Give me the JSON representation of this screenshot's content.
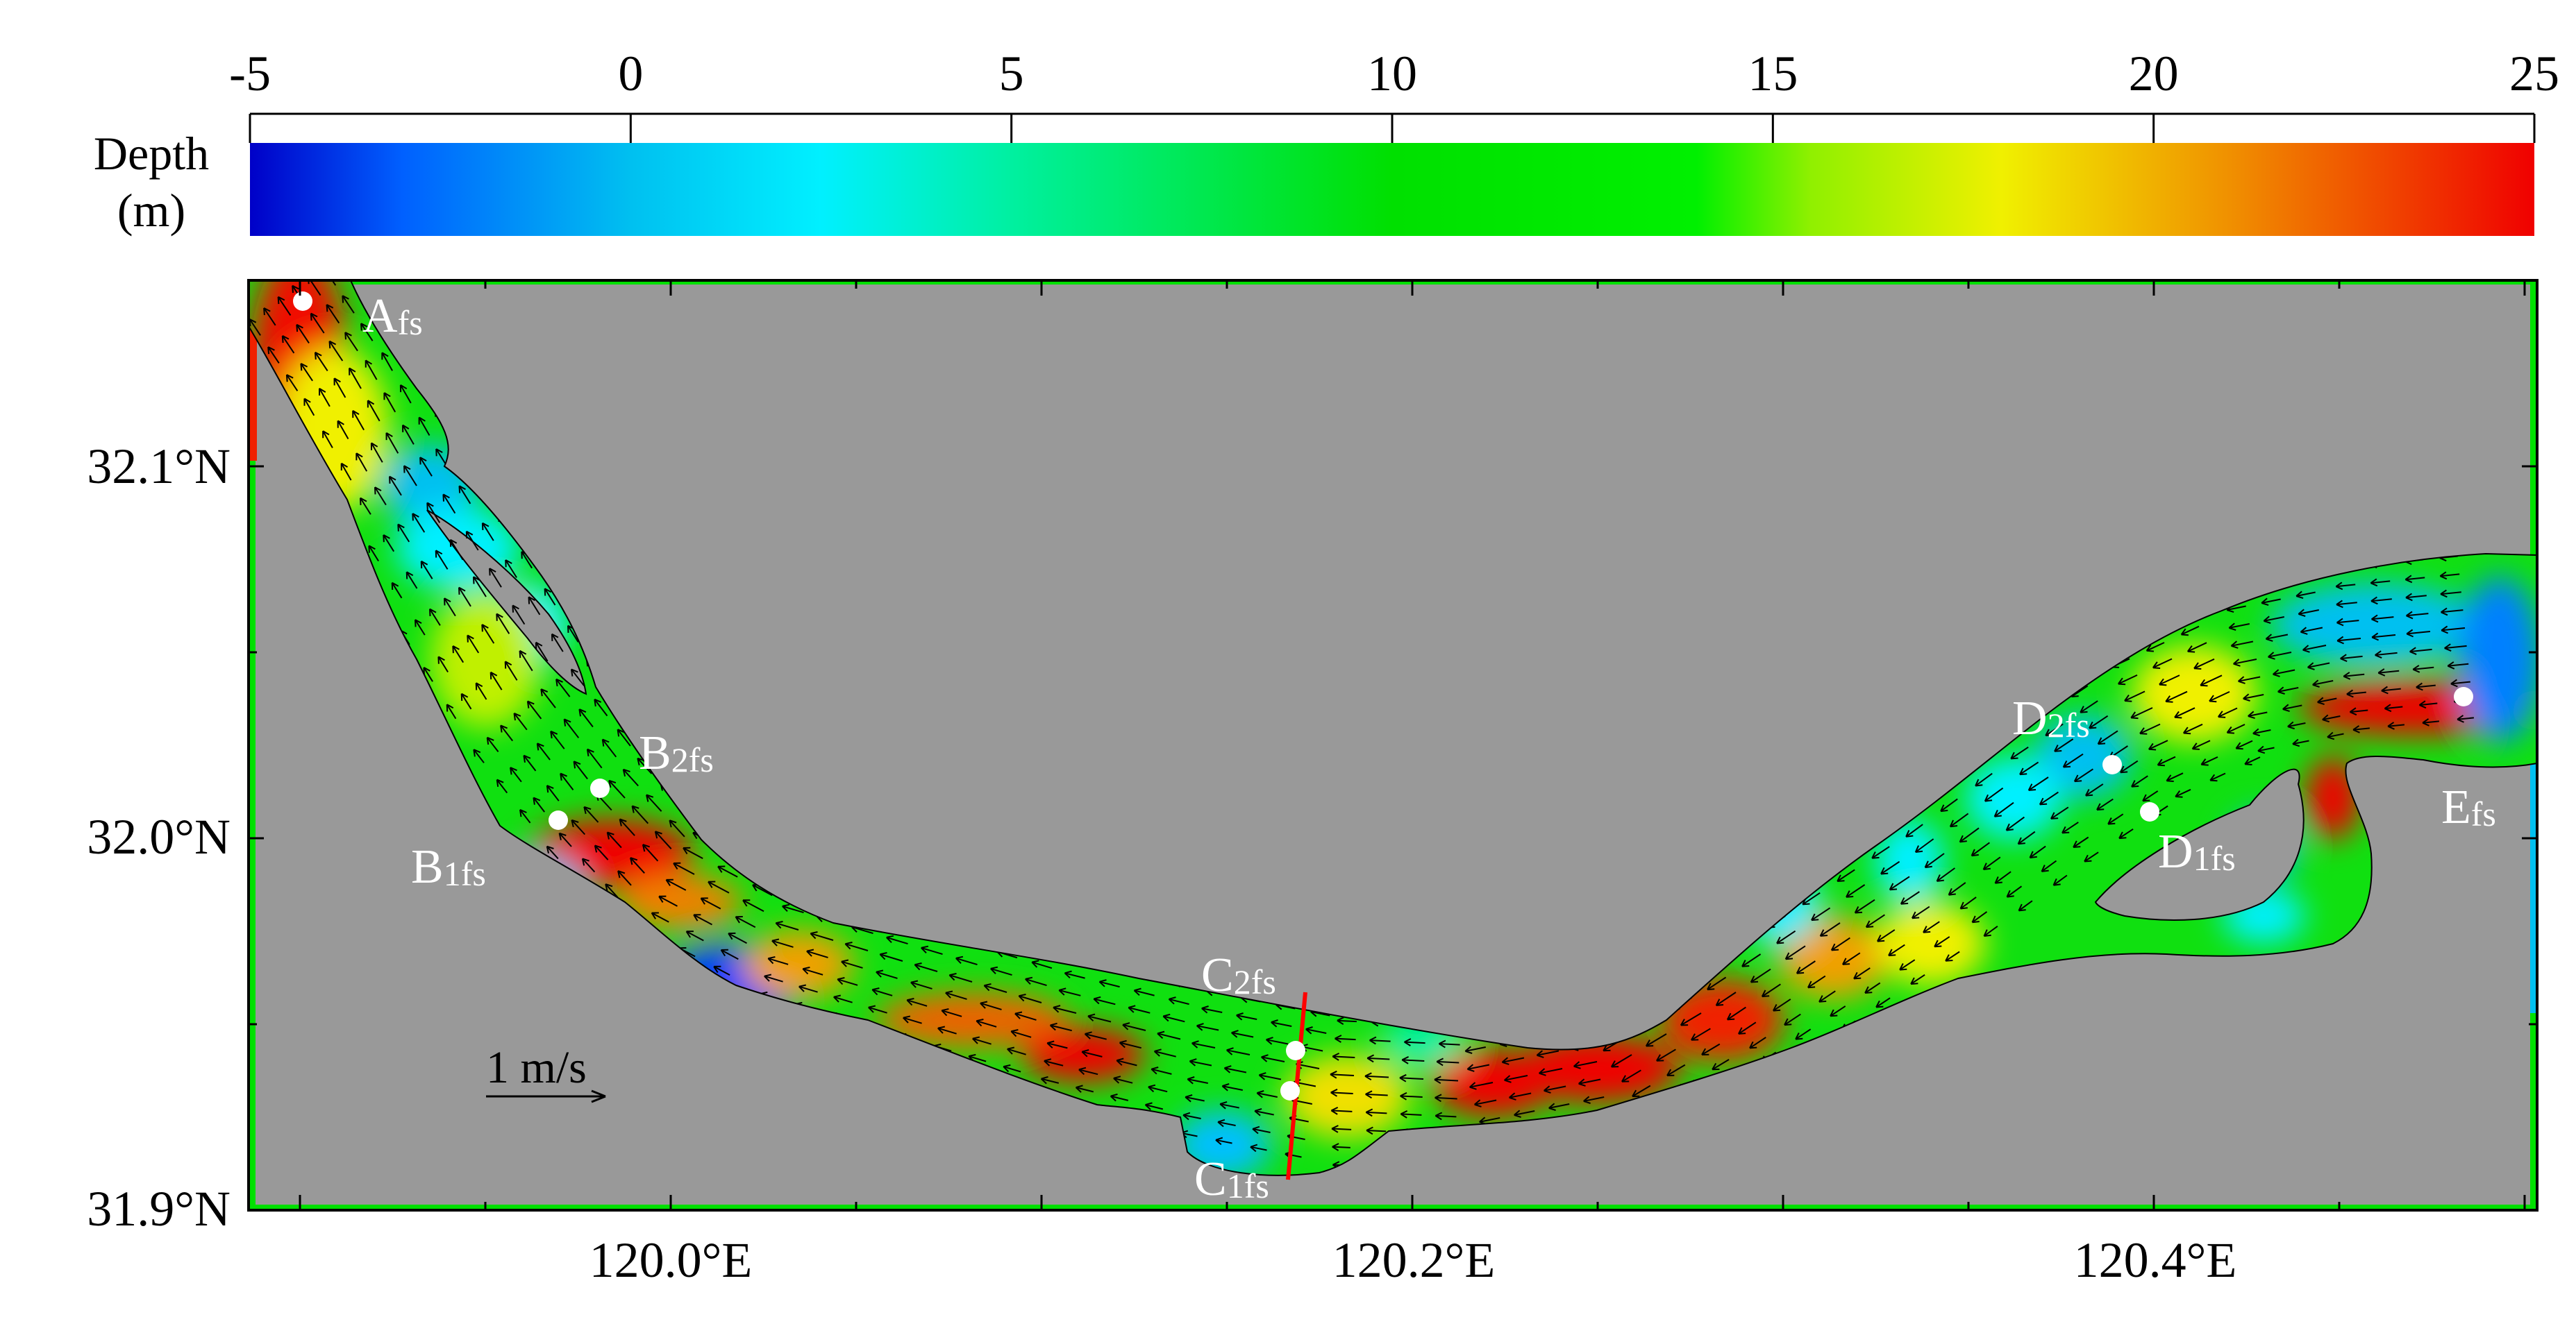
{
  "colorbar": {
    "label_line1": "Depth",
    "label_line2": "(m)",
    "ticks": [
      "-5",
      "0",
      "5",
      "10",
      "15",
      "20",
      "25"
    ],
    "stops": [
      {
        "value": -5,
        "color": "#0000c8"
      },
      {
        "value": -3,
        "color": "#0060ff"
      },
      {
        "value": 0,
        "color": "#00c0f0"
      },
      {
        "value": 2.5,
        "color": "#00f0ff"
      },
      {
        "value": 5,
        "color": "#00f0a0"
      },
      {
        "value": 10,
        "color": "#00e000"
      },
      {
        "value": 14,
        "color": "#00f000"
      },
      {
        "value": 15.5,
        "color": "#90f000"
      },
      {
        "value": 18,
        "color": "#f0f000"
      },
      {
        "value": 21,
        "color": "#f09000"
      },
      {
        "value": 25,
        "color": "#f00000"
      }
    ]
  },
  "map": {
    "lat_labels": [
      "32.1°N",
      "32.0°N",
      "31.9°N"
    ],
    "lon_labels": [
      "120.0°E",
      "120.2°E",
      "120.4°E"
    ],
    "land_color": "#999999",
    "scale_label": "1 m/s"
  },
  "stations": [
    {
      "id": "A",
      "sub": "fs"
    },
    {
      "id": "B",
      "sub": "2fs"
    },
    {
      "id": "B",
      "sub": "1fs"
    },
    {
      "id": "C",
      "sub": "2fs"
    },
    {
      "id": "C",
      "sub": "1fs"
    },
    {
      "id": "D",
      "sub": "2fs"
    },
    {
      "id": "D",
      "sub": "1fs"
    },
    {
      "id": "E",
      "sub": "fs"
    }
  ],
  "colors": {
    "section_line": "#ff0000",
    "station_marker": "#ffffff",
    "vector": "#000000"
  }
}
